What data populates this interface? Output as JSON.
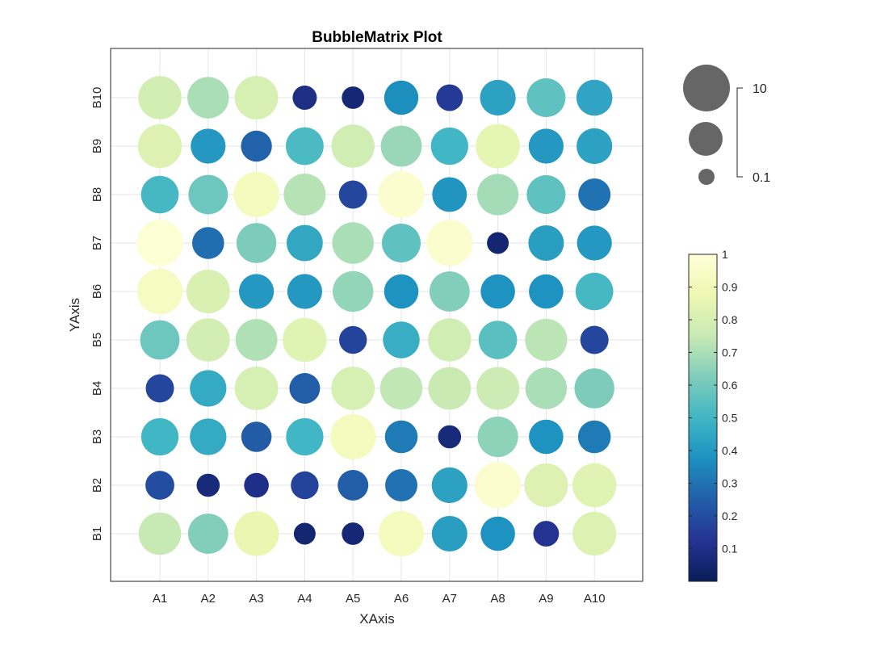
{
  "chart_data": {
    "type": "scatter",
    "title": "BubbleMatrix Plot",
    "xlabel": "XAxis",
    "ylabel": "YAxis",
    "x_categories": [
      "A1",
      "A2",
      "A3",
      "A4",
      "A5",
      "A6",
      "A7",
      "A8",
      "A9",
      "A10"
    ],
    "y_categories": [
      "B1",
      "B2",
      "B3",
      "B4",
      "B5",
      "B6",
      "B7",
      "B8",
      "B9",
      "B10"
    ],
    "grid": true,
    "colormap": "YlGnBu",
    "colormap_stops": [
      "#081d58",
      "#253494",
      "#225ea8",
      "#1d91c0",
      "#41b6c4",
      "#7fcdbb",
      "#c7e9b4",
      "#edf8b1",
      "#ffffd9"
    ],
    "color_range": [
      0,
      1
    ],
    "colorbar_ticks": [
      "0.1",
      "0.2",
      "0.3",
      "0.4",
      "0.5",
      "0.6",
      "0.7",
      "0.8",
      "0.9",
      "1"
    ],
    "size_legend": {
      "max_label": "10",
      "min_label": "0.1",
      "color": "#666666"
    },
    "values": [
      [
        0.75,
        0.63,
        0.87,
        0.05,
        0.06,
        0.92,
        0.42,
        0.38,
        0.12,
        0.82
      ],
      [
        0.2,
        0.07,
        0.1,
        0.17,
        0.25,
        0.3,
        0.43,
        0.97,
        0.82,
        0.83
      ],
      [
        0.5,
        0.46,
        0.24,
        0.5,
        0.92,
        0.32,
        0.07,
        0.65,
        0.38,
        0.32
      ],
      [
        0.18,
        0.46,
        0.8,
        0.25,
        0.8,
        0.74,
        0.76,
        0.77,
        0.7,
        0.62
      ],
      [
        0.59,
        0.79,
        0.71,
        0.83,
        0.17,
        0.47,
        0.78,
        0.55,
        0.73,
        0.18
      ],
      [
        0.93,
        0.81,
        0.4,
        0.4,
        0.66,
        0.38,
        0.63,
        0.38,
        0.38,
        0.51
      ],
      [
        0.98,
        0.29,
        0.62,
        0.45,
        0.7,
        0.56,
        0.97,
        0.05,
        0.42,
        0.4
      ],
      [
        0.51,
        0.59,
        0.92,
        0.72,
        0.18,
        0.97,
        0.39,
        0.69,
        0.56,
        0.3
      ],
      [
        0.82,
        0.4,
        0.26,
        0.52,
        0.78,
        0.67,
        0.5,
        0.85,
        0.4,
        0.43
      ],
      [
        0.79,
        0.7,
        0.8,
        0.09,
        0.06,
        0.37,
        0.14,
        0.43,
        0.56,
        0.44
      ]
    ]
  }
}
